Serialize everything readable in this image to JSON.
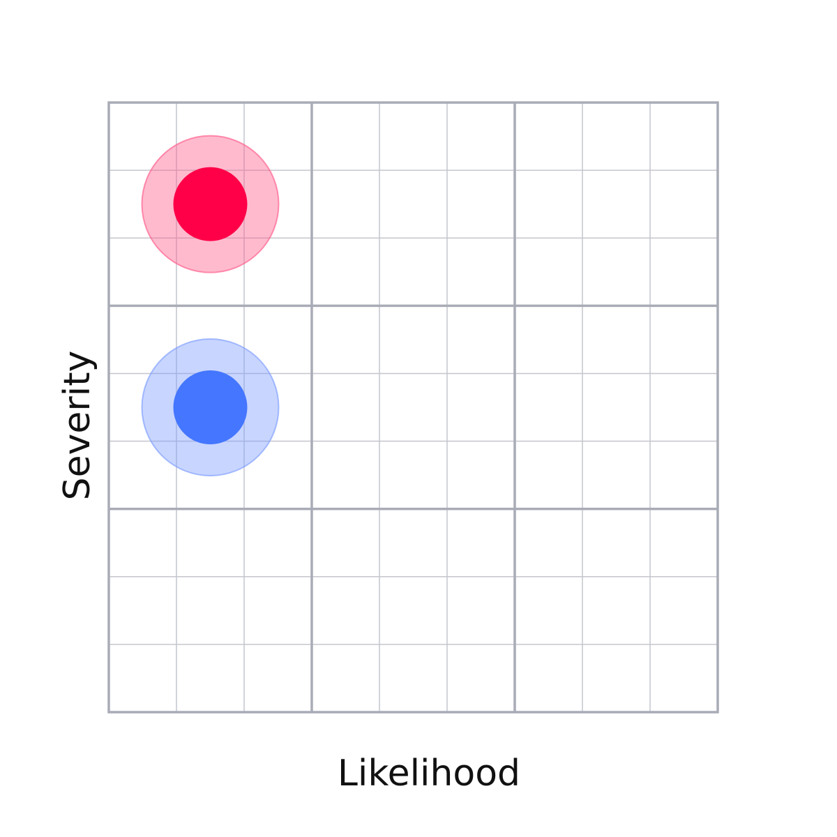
{
  "chart_data": {
    "type": "scatter",
    "title": "",
    "xlabel": "Likelihood",
    "ylabel": "Severity",
    "xlim": [
      0,
      9
    ],
    "ylim": [
      0,
      9
    ],
    "major_grid_every": 3,
    "minor_grid_every": 1,
    "grid": true,
    "colors": {
      "major_grid": "#a9acb6",
      "minor_grid": "#c4c6cd"
    },
    "series": [
      {
        "color": "#ff0048",
        "halo_color": "#ff5a8b",
        "points": [
          {
            "x": 1.5,
            "y": 7.5
          }
        ]
      },
      {
        "color": "#4476ff",
        "halo_color": "#7c9cff",
        "points": [
          {
            "x": 1.5,
            "y": 4.5
          }
        ]
      }
    ]
  }
}
